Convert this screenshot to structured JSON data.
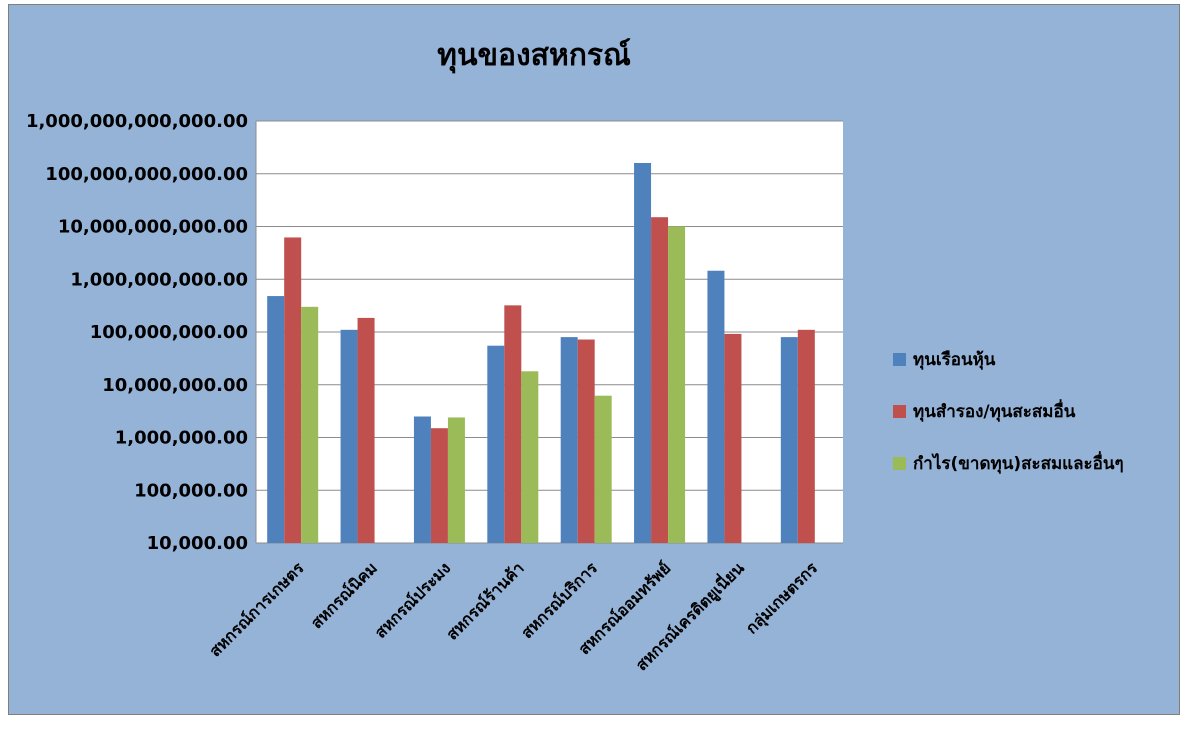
{
  "chart_data": {
    "type": "bar",
    "title": "ทุนของสหกรณ์",
    "xlabel": "",
    "ylabel": "",
    "scale": "log",
    "ylim": [
      10000,
      1000000000000
    ],
    "grid": true,
    "legend_position": "right",
    "y_ticks": [
      10000,
      100000,
      1000000,
      10000000,
      100000000,
      1000000000,
      10000000000,
      100000000000,
      1000000000000
    ],
    "y_tick_labels": [
      "10,000.00",
      "100,000.00",
      "1,000,000.00",
      "10,000,000.00",
      "100,000,000.00",
      "1,000,000,000.00",
      "10,000,000,000.00",
      "100,000,000,000.00",
      "1,000,000,000,000.00"
    ],
    "categories": [
      "สหกรณ์การเกษตร",
      "สหกรณ์นิคม",
      "สหกรณ์ประมง",
      "สหกรณ์ร้านค้า",
      "สหกรณ์บริการ",
      "สหกรณ์ออมทรัพย์",
      "สหกรณ์เครดิตยูเนี่ยน",
      "กลุ่มเกษตรกร"
    ],
    "series": [
      {
        "name": "ทุนเรือนหุ้น",
        "color": "#4f81bd",
        "values": [
          480000000,
          110000000,
          2500000,
          55000000,
          80000000,
          160000000000,
          1450000000,
          80000000
        ]
      },
      {
        "name": "ทุนสำรอง/ทุนสะสมอื่น",
        "color": "#c0504d",
        "values": [
          6200000000,
          185000000,
          1500000,
          320000000,
          72000000,
          15000000000,
          92000000,
          110000000
        ]
      },
      {
        "name": "กำไร(ขาดทุน)สะสมและอื่นๆ",
        "color": "#9bbb59",
        "values": [
          300000000,
          null,
          2400000,
          18000000,
          6200000,
          10000000000,
          null,
          null
        ]
      }
    ]
  }
}
